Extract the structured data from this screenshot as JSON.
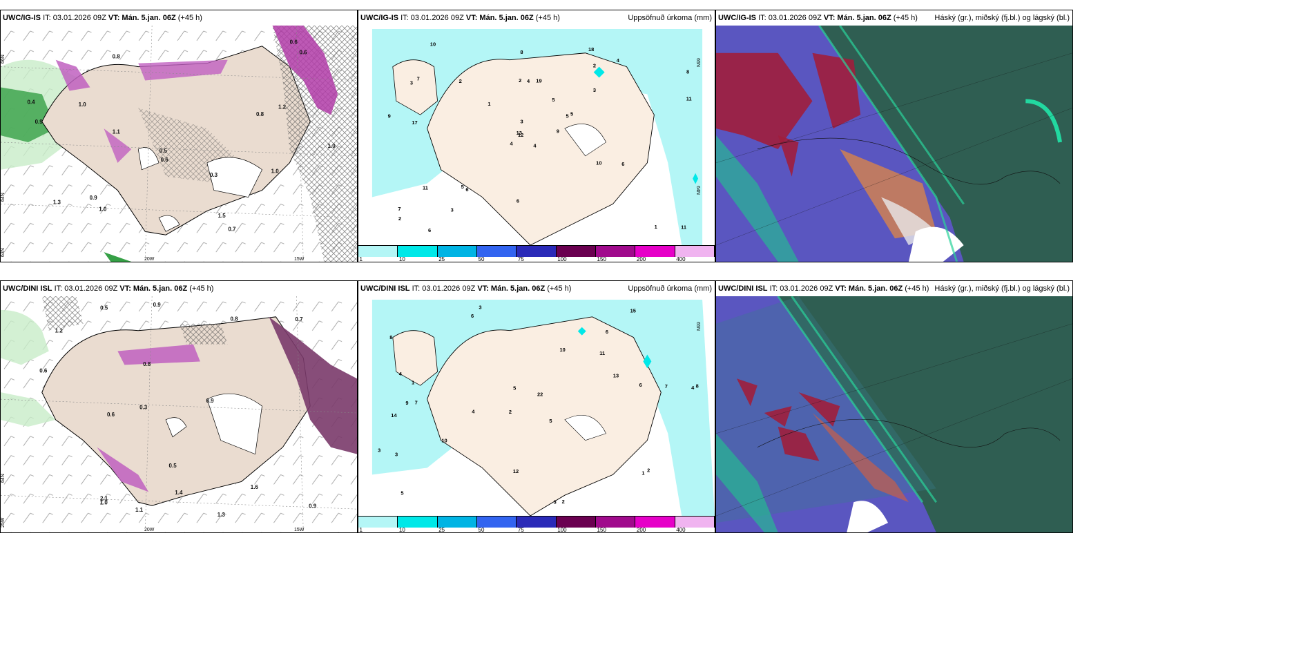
{
  "legend_colors": [
    "#b4f6f6",
    "#00e8e8",
    "#00b4e4",
    "#3264f0",
    "#2a2ab8",
    "#6a0050",
    "#a00a8c",
    "#e600c8",
    "#f0b4f0"
  ],
  "legend_ticks": [
    "1",
    "10",
    "25",
    "50",
    "75",
    "100",
    "150",
    "200",
    "400"
  ],
  "rows": [
    {
      "model": "UWC/IG-IS",
      "it": "IT: 03.01.2026 09Z",
      "vt_label": "VT:",
      "vt": "Mán. 5.jan. 06Z",
      "lead": "(+45 h)",
      "precip_title": "Uppsöfnuð úrkoma (mm)",
      "cloud_title": "Háský (gr.), miðský (fj.bl.) og lágský (bl.)",
      "lon_labels": [
        "20W",
        "15W"
      ],
      "lat_labels": [
        "66N",
        "64N",
        "63N"
      ],
      "precip_lat_labels": [
        "65N",
        "64N"
      ],
      "snow_labels": [
        "0.7",
        "0.8",
        "0.9",
        "1.0",
        "1.2",
        "1.5",
        "1.0",
        "1.1",
        "0.6",
        "1.0",
        "1.3",
        "0.4",
        "0.5",
        "0.3",
        "0.8",
        "0.6",
        "0.9",
        "0.6",
        "1.0"
      ],
      "precip_values": [
        "4",
        "3",
        "12",
        "7",
        "5",
        "6",
        "18",
        "19",
        "2",
        "9",
        "10",
        "11",
        "17",
        "8",
        "4",
        "3",
        "6",
        "2",
        "5",
        "11",
        "1",
        "2",
        "3",
        "4",
        "5",
        "6",
        "7",
        "8",
        "9",
        "10",
        "11",
        "13",
        "6",
        "3",
        "2",
        "4",
        "5",
        "1"
      ]
    },
    {
      "model": "UWC/DINI ISL",
      "it": "IT: 03.01.2026 09Z",
      "vt_label": "VT:",
      "vt": "Mán. 5.jan. 06Z",
      "lead": "(+45 h)",
      "precip_title": "Uppsöfnuð úrkoma (mm)",
      "cloud_title": "Háský (gr.), miðský (fj.bl.) og lágský (bl.)",
      "lon_labels": [
        "20W",
        "15W"
      ],
      "lat_labels": [
        "64N",
        "25W"
      ],
      "precip_lat_labels": [
        "65N"
      ],
      "snow_labels": [
        "1.1",
        "1.3",
        "2.1",
        "1.6",
        "0.5",
        "1.2",
        "0.6",
        "0.9",
        "0.9",
        "0.8",
        "0.7",
        "1.4",
        "0.3",
        "0.5",
        "0.8",
        "0.9",
        "0.6",
        "1.0"
      ],
      "precip_values": [
        "3",
        "6",
        "4",
        "2",
        "5",
        "7",
        "8",
        "11",
        "14",
        "10",
        "22",
        "5",
        "6",
        "4",
        "3",
        "2",
        "12",
        "15",
        "13",
        "10",
        "1",
        "9",
        "8",
        "7",
        "3",
        "4",
        "5",
        "6",
        "2",
        "3",
        "1"
      ]
    }
  ]
}
